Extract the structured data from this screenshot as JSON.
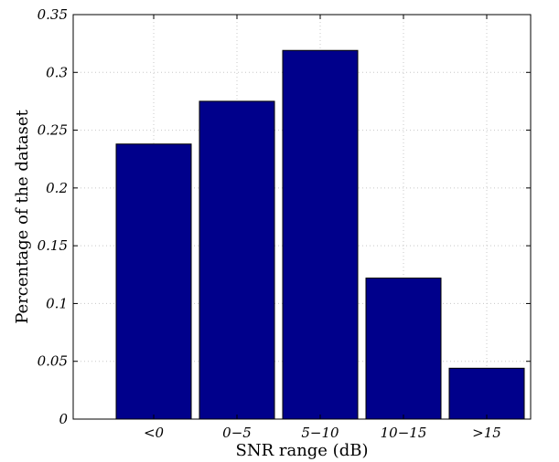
{
  "chart_data": {
    "type": "bar",
    "categories": [
      "<0",
      "0−5",
      "5−10",
      "10−15",
      ">15"
    ],
    "values": [
      0.238,
      0.275,
      0.319,
      0.122,
      0.044
    ],
    "title": "",
    "xlabel": "SNR range (dB)",
    "ylabel": "Percentage of the dataset",
    "ylim": [
      0,
      0.35
    ],
    "yticks": [
      0,
      0.05,
      0.1,
      0.15,
      0.2,
      0.25,
      0.3,
      0.35
    ],
    "ytick_labels": [
      "0",
      "0.05",
      "0.1",
      "0.15",
      "0.2",
      "0.25",
      "0.3",
      "0.35"
    ],
    "grid": true,
    "bar_color": "#00008b"
  }
}
